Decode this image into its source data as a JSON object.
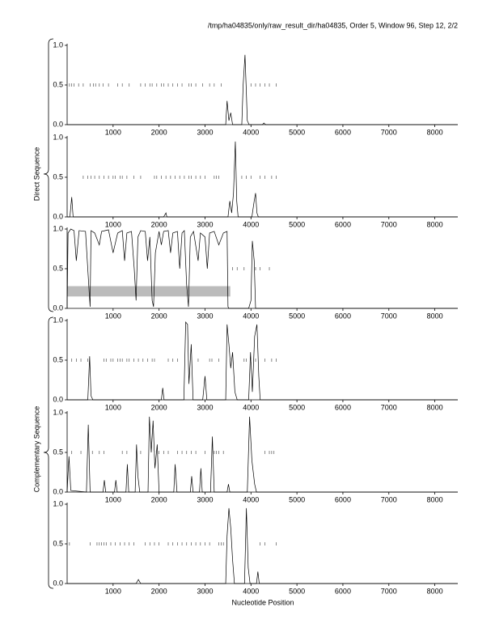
{
  "header": {
    "title": "/tmp/ha04835/only/raw_result_dir/ha04835, Order 5, Window 96, Step 12, 2/2",
    "xlabel": "Nucleotide Position",
    "group_labels": [
      "Direct Sequence",
      "Complementary Sequence"
    ]
  },
  "chart_data": [
    {
      "type": "line",
      "xlim": [
        0,
        8500
      ],
      "xticks": [
        1000,
        2000,
        3000,
        4000,
        5000,
        6000,
        7000,
        8000
      ],
      "ylim": [
        0,
        1
      ],
      "yticks": [
        {
          "value": 0,
          "label": "0.0"
        },
        {
          "value": 0.5,
          "label": "0.5"
        },
        {
          "value": 1,
          "label": "1.0"
        }
      ],
      "series": [
        {
          "color": "#000000",
          "x": [
            0,
            3450,
            3480,
            3520,
            3560,
            3600,
            3800,
            3830,
            3870,
            3900,
            3920,
            3960,
            4250,
            4280,
            4320,
            8500
          ],
          "values": [
            0,
            0,
            0.3,
            0.05,
            0.15,
            0,
            0,
            0.5,
            0.88,
            0.4,
            0.05,
            0,
            0,
            0.02,
            0,
            0
          ]
        },
        {
          "type": "rug",
          "color": "#555555",
          "y": 0.5,
          "x": [
            50,
            100,
            150,
            250,
            350,
            500,
            570,
            620,
            700,
            780,
            900,
            1100,
            1200,
            1350,
            1600,
            1700,
            1800,
            1850,
            1950,
            2050,
            2100,
            2200,
            2300,
            2400,
            2500,
            2650,
            2700,
            2800,
            2950,
            3100,
            3200,
            3350,
            4000,
            4100,
            4200,
            4300,
            4400,
            4550
          ]
        }
      ]
    },
    {
      "type": "line",
      "xlim": [
        0,
        8500
      ],
      "xticks": [
        1000,
        2000,
        3000,
        4000,
        5000,
        6000,
        7000,
        8000
      ],
      "ylim": [
        0,
        1
      ],
      "yticks": [
        {
          "value": 0,
          "label": "0.0"
        },
        {
          "value": 0.5,
          "label": "0.5"
        },
        {
          "value": 1,
          "label": "1.0"
        }
      ],
      "series": [
        {
          "color": "#000000",
          "x": [
            0,
            60,
            100,
            130,
            2100,
            2150,
            2170,
            3500,
            3540,
            3580,
            3620,
            3660,
            3690,
            3720,
            4020,
            4070,
            4100,
            4130,
            4160,
            8500
          ],
          "values": [
            0,
            0,
            0.25,
            0,
            0,
            0.05,
            0,
            0,
            0.2,
            0.05,
            0.3,
            0.95,
            0.2,
            0,
            0,
            0.2,
            0.3,
            0.05,
            0,
            0
          ]
        },
        {
          "type": "rug",
          "color": "#555555",
          "y": 0.5,
          "x": [
            350,
            450,
            520,
            600,
            700,
            800,
            900,
            1000,
            1050,
            1150,
            1200,
            1300,
            1450,
            1600,
            1900,
            1950,
            2050,
            2150,
            2250,
            2350,
            2450,
            2550,
            2650,
            2700,
            2800,
            2900,
            3000,
            3200,
            3250,
            3300,
            3800,
            3900,
            4000,
            4200,
            4300,
            4450,
            4550
          ]
        }
      ]
    },
    {
      "type": "line",
      "xlim": [
        0,
        8500
      ],
      "xticks": [
        1000,
        2000,
        3000,
        4000,
        5000,
        6000,
        7000,
        8000
      ],
      "ylim": [
        0,
        1
      ],
      "yticks": [
        {
          "value": 0,
          "label": "0.0"
        },
        {
          "value": 0.5,
          "label": "0.5"
        },
        {
          "value": 1,
          "label": "1.0"
        }
      ],
      "bands": [
        {
          "color": "#bbbbbb",
          "x": [
            0,
            3550
          ],
          "y": [
            0.15,
            0.28
          ]
        }
      ],
      "series": [
        {
          "color": "#000000",
          "x": [
            0,
            20,
            80,
            150,
            200,
            260,
            400,
            480,
            500,
            520,
            600,
            700,
            750,
            900,
            1000,
            1100,
            1200,
            1250,
            1300,
            1400,
            1460,
            1500,
            1540,
            1600,
            1700,
            1750,
            1800,
            1850,
            1880,
            1920,
            2000,
            2050,
            2100,
            2200,
            2250,
            2300,
            2400,
            2450,
            2500,
            2550,
            2600,
            2640,
            2680,
            2750,
            2850,
            2900,
            3000,
            3050,
            3100,
            3200,
            3300,
            3400,
            3480,
            3500,
            3520,
            3950,
            4000,
            4030,
            4070,
            4100,
            8500
          ],
          "values": [
            0,
            0.95,
            1,
            0.98,
            0.6,
            0.98,
            0.97,
            0.2,
            0.02,
            0.98,
            0.95,
            0.8,
            0.97,
            0.99,
            0.7,
            0.95,
            0.98,
            0.6,
            0.95,
            0.97,
            0.5,
            0.1,
            0.9,
            0.98,
            0.97,
            0.6,
            0.9,
            0.1,
            0.02,
            0.7,
            0.97,
            0.8,
            0.97,
            0.98,
            0.7,
            0.95,
            0.97,
            0.5,
            0.95,
            0.98,
            0.3,
            0.02,
            0.9,
            0.97,
            0.6,
            0.95,
            0.9,
            0.5,
            0.95,
            0.97,
            0.8,
            0.95,
            0.97,
            0.02,
            0,
            0,
            0.1,
            0.85,
            0.6,
            0,
            0
          ]
        },
        {
          "type": "rug",
          "color": "#555555",
          "y": 0.5,
          "x": [
            3600,
            3700,
            3850,
            4100,
            4200,
            4400
          ]
        }
      ]
    },
    {
      "type": "line",
      "xlim": [
        0,
        8500
      ],
      "xticks": [
        1000,
        2000,
        3000,
        4000,
        5000,
        6000,
        7000,
        8000
      ],
      "ylim": [
        0,
        1
      ],
      "yticks": [
        {
          "value": 0,
          "label": "0.0"
        },
        {
          "value": 0.5,
          "label": "0.5"
        },
        {
          "value": 1,
          "label": "1.0"
        }
      ],
      "series": [
        {
          "color": "#000000",
          "x": [
            0,
            450,
            490,
            520,
            560,
            2050,
            2080,
            2110,
            2540,
            2580,
            2620,
            2650,
            2700,
            2740,
            2950,
            3000,
            3040,
            3450,
            3480,
            3520,
            3560,
            3600,
            3650,
            3700,
            3950,
            3990,
            4030,
            4080,
            4130,
            4170,
            4200,
            8500
          ],
          "values": [
            0,
            0,
            0.55,
            0.05,
            0,
            0,
            0.15,
            0,
            0,
            0.98,
            0.95,
            0.2,
            0.7,
            0,
            0,
            0.3,
            0,
            0,
            0.95,
            0.7,
            0.4,
            0.6,
            0.1,
            0,
            0,
            0.6,
            0.1,
            0.8,
            0.95,
            0.3,
            0,
            0
          ]
        },
        {
          "type": "rug",
          "color": "#555555",
          "y": 0.5,
          "x": [
            100,
            200,
            300,
            450,
            800,
            850,
            950,
            1000,
            1100,
            1150,
            1200,
            1300,
            1350,
            1450,
            1550,
            1650,
            1750,
            1850,
            1900,
            2200,
            2300,
            2400,
            2850,
            3100,
            3150,
            3300,
            3850,
            3900,
            4000,
            4100,
            4300,
            4450,
            4550
          ]
        }
      ]
    },
    {
      "type": "line",
      "xlim": [
        0,
        8500
      ],
      "xticks": [
        1000,
        2000,
        3000,
        4000,
        5000,
        6000,
        7000,
        8000
      ],
      "ylim": [
        0,
        1
      ],
      "yticks": [
        {
          "value": 0,
          "label": "0.0"
        },
        {
          "value": 0.5,
          "label": "0.5"
        },
        {
          "value": 1,
          "label": "1.0"
        }
      ],
      "series": [
        {
          "color": "#000000",
          "x": [
            0,
            40,
            80,
            420,
            460,
            500,
            780,
            810,
            840,
            1030,
            1060,
            1090,
            1280,
            1310,
            1340,
            1480,
            1510,
            1540,
            1580,
            1760,
            1790,
            1830,
            1870,
            1910,
            1960,
            2000,
            2320,
            2350,
            2390,
            2680,
            2710,
            2740,
            2880,
            2910,
            2940,
            3120,
            3160,
            3200,
            3480,
            3510,
            3540,
            3920,
            3970,
            4020,
            4080,
            4120,
            8500
          ],
          "values": [
            0,
            0.45,
            0.02,
            0,
            0.85,
            0,
            0,
            0.15,
            0,
            0,
            0.15,
            0,
            0,
            0.35,
            0,
            0,
            0.6,
            0.2,
            0,
            0,
            0.95,
            0.5,
            0.9,
            0.3,
            0.6,
            0,
            0,
            0.35,
            0,
            0,
            0.2,
            0,
            0,
            0.3,
            0,
            0,
            0.7,
            0,
            0,
            0.1,
            0,
            0,
            0.95,
            0.4,
            0.1,
            0,
            0
          ]
        },
        {
          "type": "rug",
          "color": "#555555",
          "y": 0.5,
          "x": [
            100,
            300,
            550,
            700,
            800,
            1200,
            1300,
            1600,
            1900,
            2000,
            2100,
            2200,
            2400,
            2500,
            2600,
            2700,
            2800,
            3000,
            3200,
            3250,
            3300,
            3400,
            4300,
            4400,
            4450,
            4500
          ]
        }
      ]
    },
    {
      "type": "line",
      "xlim": [
        0,
        8500
      ],
      "xticks": [
        1000,
        2000,
        3000,
        4000,
        5000,
        6000,
        7000,
        8000
      ],
      "ylim": [
        0,
        1
      ],
      "yticks": [
        {
          "value": 0,
          "label": "0.0"
        },
        {
          "value": 0.5,
          "label": "0.5"
        },
        {
          "value": 1,
          "label": "1.0"
        }
      ],
      "series": [
        {
          "color": "#000000",
          "x": [
            0,
            1500,
            1550,
            1600,
            3450,
            3480,
            3520,
            3560,
            3600,
            3640,
            3860,
            3900,
            3940,
            3980,
            4120,
            4150,
            4180,
            8500
          ],
          "values": [
            0,
            0,
            0.05,
            0,
            0,
            0.6,
            0.95,
            0.7,
            0.3,
            0,
            0,
            0.95,
            0.2,
            0,
            0,
            0.15,
            0,
            0
          ]
        },
        {
          "type": "rug",
          "color": "#555555",
          "y": 0.5,
          "x": [
            50,
            500,
            650,
            700,
            750,
            800,
            850,
            950,
            1050,
            1150,
            1250,
            1350,
            1450,
            1700,
            1800,
            1900,
            2000,
            2200,
            2300,
            2400,
            2500,
            2600,
            2700,
            2800,
            2900,
            3000,
            3100,
            3300,
            3350,
            3400,
            4200,
            4300,
            4550
          ]
        }
      ]
    }
  ]
}
